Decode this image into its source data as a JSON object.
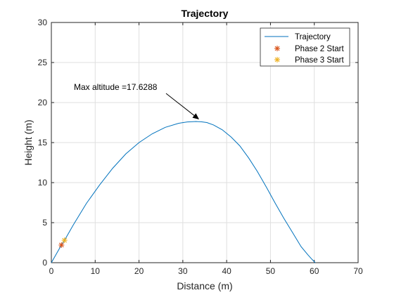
{
  "chart_data": {
    "type": "line",
    "title": "Trajectory",
    "xlabel": "Distance (m)",
    "ylabel": "Height (m)",
    "xlim": [
      0,
      70
    ],
    "ylim": [
      0,
      30
    ],
    "xticks": [
      0,
      10,
      20,
      30,
      40,
      50,
      60,
      70
    ],
    "yticks": [
      0,
      5,
      10,
      15,
      20,
      25,
      30
    ],
    "grid": true,
    "legend_position": "top-right",
    "series": [
      {
        "name": "Trajectory",
        "type": "line",
        "color": "#0072BD",
        "x": [
          0,
          2.3,
          3.0,
          5,
          8,
          11,
          14,
          17,
          20,
          23,
          26,
          29,
          31,
          33,
          34.2,
          35.5,
          37,
          39,
          41,
          43,
          45,
          47,
          49,
          51,
          53,
          55,
          57,
          58.5,
          59.5,
          60.2
        ],
        "y": [
          0,
          2.2,
          2.8,
          4.7,
          7.4,
          9.7,
          11.8,
          13.6,
          15.0,
          16.1,
          16.9,
          17.4,
          17.58,
          17.63,
          17.6,
          17.5,
          17.2,
          16.6,
          15.7,
          14.6,
          13.1,
          11.4,
          9.5,
          7.5,
          5.6,
          3.8,
          2.0,
          1.0,
          0.4,
          0
        ]
      },
      {
        "name": "Phase 2 Start",
        "type": "marker",
        "marker": "*",
        "color": "#D95319",
        "x": [
          2.3
        ],
        "y": [
          2.2
        ]
      },
      {
        "name": "Phase 3 Start",
        "type": "marker",
        "marker": "*",
        "color": "#EDB120",
        "x": [
          3.0
        ],
        "y": [
          2.8
        ]
      }
    ],
    "annotation": {
      "text": "Max altitude =17.6288",
      "x": 34.2,
      "y": 17.63
    }
  }
}
